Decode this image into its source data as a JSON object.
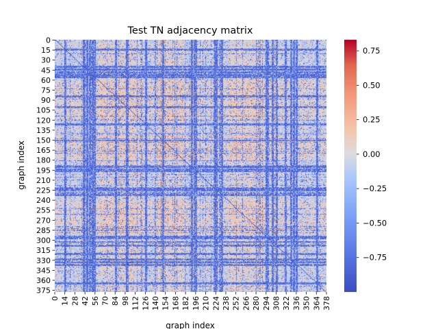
{
  "chart_data": {
    "type": "heatmap",
    "title": "Test TN adjacency matrix",
    "xlabel": "graph index",
    "ylabel": "graph index",
    "n": 378,
    "x_ticks": [
      "0",
      "14",
      "28",
      "42",
      "56",
      "70",
      "84",
      "98",
      "112",
      "126",
      "140",
      "154",
      "168",
      "182",
      "196",
      "210",
      "224",
      "238",
      "252",
      "266",
      "280",
      "294",
      "308",
      "322",
      "336",
      "350",
      "364",
      "378"
    ],
    "y_ticks": [
      "0",
      "15",
      "30",
      "45",
      "60",
      "75",
      "90",
      "105",
      "120",
      "135",
      "150",
      "165",
      "180",
      "195",
      "210",
      "225",
      "240",
      "255",
      "270",
      "285",
      "300",
      "315",
      "330",
      "345",
      "360",
      "375"
    ],
    "colorbar": {
      "min": -1.0,
      "max": 0.83,
      "ticks": [
        "0.75",
        "0.50",
        "0.25",
        "0.00",
        "−0.25",
        "−0.50",
        "−0.75"
      ],
      "tick_values": [
        0.75,
        0.5,
        0.25,
        0.0,
        -0.25,
        -0.5,
        -0.75
      ]
    },
    "colormap": "coolwarm",
    "cell_value_range": [
      -1.0,
      0.35
    ],
    "dominant_value_range": [
      -0.2,
      0.2
    ],
    "strong_negative_bands": [
      14,
      40,
      44,
      48,
      52,
      55,
      84,
      100,
      126,
      150,
      190,
      194,
      196,
      222,
      224,
      232,
      294,
      296,
      302,
      308,
      320,
      328,
      332,
      336,
      364
    ]
  }
}
